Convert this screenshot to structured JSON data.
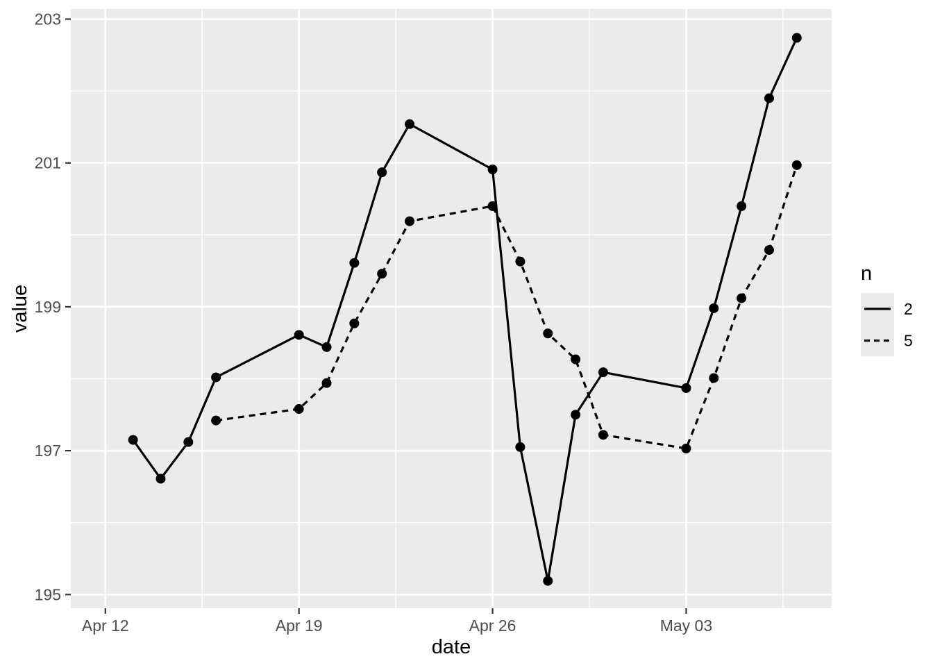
{
  "chart_data": {
    "type": "line",
    "xlabel": "date",
    "ylabel": "value",
    "legend_title": "n",
    "legend_position": "right",
    "panel_background": "#EBEBEB",
    "grid_color": "#FFFFFF",
    "series_color": "#000000",
    "tick_label_color": "#4d4d4d",
    "tick_mark_color": "#333333",
    "x_domain_days": [
      -1.25,
      26.26
    ],
    "y_domain": [
      194.81,
      203.14
    ],
    "x_ticks": [
      {
        "label": "Apr 12",
        "day": 0
      },
      {
        "label": "Apr 19",
        "day": 7
      },
      {
        "label": "Apr 26",
        "day": 14
      },
      {
        "label": "May 03",
        "day": 21
      }
    ],
    "x_minor_days": [
      3.5,
      10.5,
      17.5,
      24.5
    ],
    "y_ticks": [
      {
        "label": "195",
        "value": 195
      },
      {
        "label": "197",
        "value": 197
      },
      {
        "label": "199",
        "value": 199
      },
      {
        "label": "201",
        "value": 201
      },
      {
        "label": "203",
        "value": 203
      }
    ],
    "y_minor": [
      196,
      198,
      200,
      202
    ],
    "grid": true,
    "series": [
      {
        "name": "2",
        "linetype": "solid",
        "points": [
          {
            "date": "Apr 13",
            "day": 1,
            "value": 197.15
          },
          {
            "date": "Apr 14",
            "day": 2,
            "value": 196.61
          },
          {
            "date": "Apr 15",
            "day": 3,
            "value": 197.12
          },
          {
            "date": "Apr 16",
            "day": 4,
            "value": 198.02
          },
          {
            "date": "Apr 19",
            "day": 7,
            "value": 198.61
          },
          {
            "date": "Apr 20",
            "day": 8,
            "value": 198.44
          },
          {
            "date": "Apr 21",
            "day": 9,
            "value": 199.61
          },
          {
            "date": "Apr 22",
            "day": 10,
            "value": 200.87
          },
          {
            "date": "Apr 23",
            "day": 11,
            "value": 201.54
          },
          {
            "date": "Apr 26",
            "day": 14,
            "value": 200.91
          },
          {
            "date": "Apr 27",
            "day": 15,
            "value": 197.05
          },
          {
            "date": "Apr 28",
            "day": 16,
            "value": 195.19
          },
          {
            "date": "Apr 29",
            "day": 17,
            "value": 197.5
          },
          {
            "date": "Apr 30",
            "day": 18,
            "value": 198.09
          },
          {
            "date": "May 03",
            "day": 21,
            "value": 197.87
          },
          {
            "date": "May 04",
            "day": 22,
            "value": 198.98
          },
          {
            "date": "May 05",
            "day": 23,
            "value": 200.4
          },
          {
            "date": "May 06",
            "day": 24,
            "value": 201.9
          },
          {
            "date": "May 07",
            "day": 25,
            "value": 202.74
          }
        ]
      },
      {
        "name": "5",
        "linetype": "dashed",
        "points": [
          {
            "date": "Apr 16",
            "day": 4,
            "value": 197.42
          },
          {
            "date": "Apr 19",
            "day": 7,
            "value": 197.58
          },
          {
            "date": "Apr 20",
            "day": 8,
            "value": 197.94
          },
          {
            "date": "Apr 21",
            "day": 9,
            "value": 198.77
          },
          {
            "date": "Apr 22",
            "day": 10,
            "value": 199.46
          },
          {
            "date": "Apr 23",
            "day": 11,
            "value": 200.19
          },
          {
            "date": "Apr 26",
            "day": 14,
            "value": 200.4
          },
          {
            "date": "Apr 27",
            "day": 15,
            "value": 199.63
          },
          {
            "date": "Apr 28",
            "day": 16,
            "value": 198.63
          },
          {
            "date": "Apr 29",
            "day": 17,
            "value": 198.27
          },
          {
            "date": "Apr 30",
            "day": 18,
            "value": 197.22
          },
          {
            "date": "May 03",
            "day": 21,
            "value": 197.03
          },
          {
            "date": "May 04",
            "day": 22,
            "value": 198.01
          },
          {
            "date": "May 05",
            "day": 23,
            "value": 199.12
          },
          {
            "date": "May 06",
            "day": 24,
            "value": 199.79
          },
          {
            "date": "May 07",
            "day": 25,
            "value": 200.97
          }
        ]
      }
    ]
  }
}
